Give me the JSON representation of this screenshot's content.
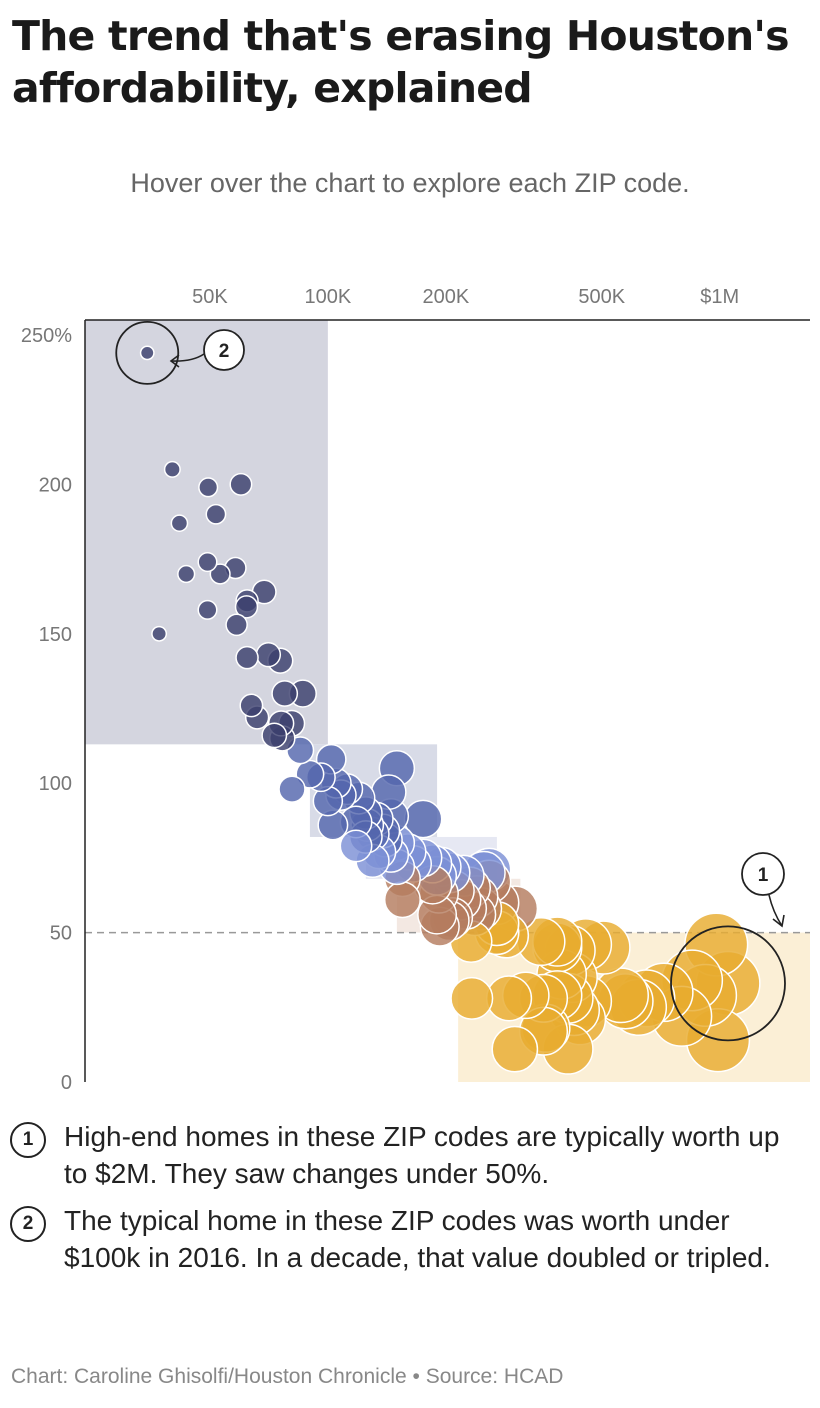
{
  "headline": "The trend that's erasing Houston's affordability, explained",
  "subtitle": "Hover over the chart to explore each ZIP code.",
  "notes": [
    {
      "num": "1",
      "text": "High-end homes in these ZIP codes are typically worth up to $2M. They saw changes under 50%."
    },
    {
      "num": "2",
      "text": "The typical home in these ZIP codes was worth under $100k in 2016. In a decade, that value doubled or tripled."
    }
  ],
  "credit": "Chart: Caroline Ghisolfi/Houston Chronicle • Source: HCAD",
  "chart_data": {
    "type": "scatter",
    "x_scale": "log",
    "xlim": [
      24000,
      1700000
    ],
    "ylim": [
      0,
      255
    ],
    "x_ticks": [
      {
        "value": 50000,
        "label": "50K"
      },
      {
        "value": 100000,
        "label": "100K"
      },
      {
        "value": 200000,
        "label": "200K"
      },
      {
        "value": 500000,
        "label": "500K"
      },
      {
        "value": 1000000,
        "label": "$1M"
      }
    ],
    "y_ticks": [
      {
        "value": 0,
        "label": "0"
      },
      {
        "value": 50,
        "label": "50"
      },
      {
        "value": 100,
        "label": "100"
      },
      {
        "value": 150,
        "label": "150"
      },
      {
        "value": 200,
        "label": "200"
      },
      {
        "value": 250,
        "label": "250%"
      }
    ],
    "reference_line": 50,
    "groups": [
      {
        "name": "under-100k",
        "color": "#3c3f6e",
        "band_color": "#d4d5df",
        "band_x": [
          24000,
          100000
        ],
        "band_y": [
          113,
          255
        ]
      },
      {
        "name": "100k-150k",
        "color": "#5467ad",
        "band_color": "#d8dbe7",
        "band_x": [
          90000,
          190000
        ],
        "band_y": [
          82,
          113
        ]
      },
      {
        "name": "150k-250k",
        "color": "#7d90d6",
        "band_color": "#e6e8f3",
        "band_x": [
          125000,
          270000
        ],
        "band_y": [
          68,
          82
        ]
      },
      {
        "name": "250k-400k",
        "color": "#b57c5f",
        "band_color": "#f3e8e2",
        "band_x": [
          150000,
          310000
        ],
        "band_y": [
          50,
          68
        ]
      },
      {
        "name": "400k-plus",
        "color": "#e8ac2f",
        "band_color": "#fbefd6",
        "band_x": [
          215000,
          1700000
        ],
        "band_y": [
          0,
          50
        ]
      }
    ],
    "points": [
      {
        "group": 0,
        "x": 34600,
        "y": 244
      },
      {
        "group": 0,
        "x": 40100,
        "y": 205
      },
      {
        "group": 0,
        "x": 49500,
        "y": 199
      },
      {
        "group": 0,
        "x": 60000,
        "y": 200
      },
      {
        "group": 0,
        "x": 41800,
        "y": 187
      },
      {
        "group": 0,
        "x": 51800,
        "y": 190
      },
      {
        "group": 0,
        "x": 43500,
        "y": 170
      },
      {
        "group": 0,
        "x": 49300,
        "y": 174
      },
      {
        "group": 0,
        "x": 53100,
        "y": 170
      },
      {
        "group": 0,
        "x": 58100,
        "y": 172
      },
      {
        "group": 0,
        "x": 68800,
        "y": 164
      },
      {
        "group": 0,
        "x": 62200,
        "y": 161
      },
      {
        "group": 0,
        "x": 62000,
        "y": 159
      },
      {
        "group": 0,
        "x": 49300,
        "y": 158
      },
      {
        "group": 0,
        "x": 58500,
        "y": 153
      },
      {
        "group": 0,
        "x": 37100,
        "y": 150
      },
      {
        "group": 0,
        "x": 62200,
        "y": 142
      },
      {
        "group": 0,
        "x": 70500,
        "y": 143
      },
      {
        "group": 0,
        "x": 75600,
        "y": 141
      },
      {
        "group": 0,
        "x": 77600,
        "y": 130
      },
      {
        "group": 0,
        "x": 86300,
        "y": 130
      },
      {
        "group": 0,
        "x": 63800,
        "y": 126
      },
      {
        "group": 0,
        "x": 66000,
        "y": 122
      },
      {
        "group": 0,
        "x": 76000,
        "y": 120
      },
      {
        "group": 0,
        "x": 80800,
        "y": 120
      },
      {
        "group": 0,
        "x": 73000,
        "y": 116
      },
      {
        "group": 0,
        "x": 76500,
        "y": 115
      },
      {
        "group": 1,
        "x": 85000,
        "y": 111
      },
      {
        "group": 1,
        "x": 102000,
        "y": 108
      },
      {
        "group": 1,
        "x": 90000,
        "y": 103
      },
      {
        "group": 1,
        "x": 96000,
        "y": 102
      },
      {
        "group": 1,
        "x": 105000,
        "y": 100
      },
      {
        "group": 1,
        "x": 150000,
        "y": 105
      },
      {
        "group": 1,
        "x": 112000,
        "y": 98
      },
      {
        "group": 1,
        "x": 108000,
        "y": 96
      },
      {
        "group": 1,
        "x": 120000,
        "y": 95
      },
      {
        "group": 1,
        "x": 143000,
        "y": 97
      },
      {
        "group": 1,
        "x": 81000,
        "y": 98
      },
      {
        "group": 1,
        "x": 100000,
        "y": 94
      },
      {
        "group": 1,
        "x": 125000,
        "y": 90
      },
      {
        "group": 1,
        "x": 133000,
        "y": 88
      },
      {
        "group": 1,
        "x": 145000,
        "y": 89
      },
      {
        "group": 1,
        "x": 175000,
        "y": 88
      },
      {
        "group": 1,
        "x": 103000,
        "y": 86
      },
      {
        "group": 1,
        "x": 118000,
        "y": 87
      },
      {
        "group": 1,
        "x": 126000,
        "y": 86
      },
      {
        "group": 1,
        "x": 138000,
        "y": 84
      },
      {
        "group": 1,
        "x": 125000,
        "y": 82
      },
      {
        "group": 1,
        "x": 140000,
        "y": 81
      },
      {
        "group": 1,
        "x": 130000,
        "y": 83
      },
      {
        "group": 2,
        "x": 150000,
        "y": 80
      },
      {
        "group": 2,
        "x": 118000,
        "y": 79
      },
      {
        "group": 2,
        "x": 135000,
        "y": 77
      },
      {
        "group": 2,
        "x": 160000,
        "y": 77
      },
      {
        "group": 2,
        "x": 145000,
        "y": 76
      },
      {
        "group": 2,
        "x": 175000,
        "y": 75
      },
      {
        "group": 2,
        "x": 165000,
        "y": 73
      },
      {
        "group": 2,
        "x": 195000,
        "y": 72
      },
      {
        "group": 2,
        "x": 185000,
        "y": 73
      },
      {
        "group": 2,
        "x": 150000,
        "y": 72
      },
      {
        "group": 2,
        "x": 130000,
        "y": 74
      },
      {
        "group": 2,
        "x": 205000,
        "y": 70
      },
      {
        "group": 2,
        "x": 222000,
        "y": 69
      },
      {
        "group": 2,
        "x": 250000,
        "y": 70
      },
      {
        "group": 2,
        "x": 258000,
        "y": 71
      },
      {
        "group": 2,
        "x": 190000,
        "y": 69
      },
      {
        "group": 3,
        "x": 155000,
        "y": 68
      },
      {
        "group": 3,
        "x": 185000,
        "y": 66
      },
      {
        "group": 3,
        "x": 210000,
        "y": 64
      },
      {
        "group": 3,
        "x": 230000,
        "y": 65
      },
      {
        "group": 3,
        "x": 258000,
        "y": 67
      },
      {
        "group": 3,
        "x": 192000,
        "y": 63
      },
      {
        "group": 3,
        "x": 240000,
        "y": 62
      },
      {
        "group": 3,
        "x": 218000,
        "y": 61
      },
      {
        "group": 3,
        "x": 155000,
        "y": 61
      },
      {
        "group": 3,
        "x": 270000,
        "y": 60
      },
      {
        "group": 3,
        "x": 245000,
        "y": 58
      },
      {
        "group": 3,
        "x": 225000,
        "y": 58
      },
      {
        "group": 3,
        "x": 300000,
        "y": 58
      },
      {
        "group": 3,
        "x": 190000,
        "y": 56
      },
      {
        "group": 3,
        "x": 208000,
        "y": 55
      },
      {
        "group": 3,
        "x": 237000,
        "y": 56
      },
      {
        "group": 3,
        "x": 193000,
        "y": 52
      },
      {
        "group": 3,
        "x": 204000,
        "y": 54
      },
      {
        "group": 4,
        "x": 232000,
        "y": 47
      },
      {
        "group": 4,
        "x": 270000,
        "y": 50
      },
      {
        "group": 4,
        "x": 285000,
        "y": 49
      },
      {
        "group": 4,
        "x": 270000,
        "y": 53
      },
      {
        "group": 4,
        "x": 350000,
        "y": 47
      },
      {
        "group": 4,
        "x": 385000,
        "y": 45
      },
      {
        "group": 4,
        "x": 415000,
        "y": 44
      },
      {
        "group": 4,
        "x": 385000,
        "y": 47
      },
      {
        "group": 4,
        "x": 455000,
        "y": 46
      },
      {
        "group": 4,
        "x": 505000,
        "y": 45
      },
      {
        "group": 4,
        "x": 420000,
        "y": 35
      },
      {
        "group": 4,
        "x": 395000,
        "y": 36
      },
      {
        "group": 4,
        "x": 233000,
        "y": 28
      },
      {
        "group": 4,
        "x": 290000,
        "y": 28
      },
      {
        "group": 4,
        "x": 320000,
        "y": 29
      },
      {
        "group": 4,
        "x": 355000,
        "y": 28
      },
      {
        "group": 4,
        "x": 385000,
        "y": 29
      },
      {
        "group": 4,
        "x": 410000,
        "y": 28
      },
      {
        "group": 4,
        "x": 425000,
        "y": 24
      },
      {
        "group": 4,
        "x": 455000,
        "y": 27
      },
      {
        "group": 4,
        "x": 440000,
        "y": 21
      },
      {
        "group": 4,
        "x": 360000,
        "y": 18
      },
      {
        "group": 4,
        "x": 355000,
        "y": 17
      },
      {
        "group": 4,
        "x": 560000,
        "y": 29
      },
      {
        "group": 4,
        "x": 575000,
        "y": 27
      },
      {
        "group": 4,
        "x": 620000,
        "y": 25
      },
      {
        "group": 4,
        "x": 650000,
        "y": 28
      },
      {
        "group": 4,
        "x": 720000,
        "y": 30
      },
      {
        "group": 4,
        "x": 800000,
        "y": 22
      },
      {
        "group": 4,
        "x": 850000,
        "y": 34
      },
      {
        "group": 4,
        "x": 920000,
        "y": 29
      },
      {
        "group": 4,
        "x": 980000,
        "y": 46
      },
      {
        "group": 4,
        "x": 1050000,
        "y": 33
      },
      {
        "group": 4,
        "x": 990000,
        "y": 14
      },
      {
        "group": 4,
        "x": 410000,
        "y": 11
      },
      {
        "group": 4,
        "x": 300000,
        "y": 11
      }
    ],
    "callouts": [
      {
        "label": "1",
        "x": 1050000,
        "y": 33
      },
      {
        "label": "2",
        "x": 34600,
        "y": 244
      }
    ]
  }
}
